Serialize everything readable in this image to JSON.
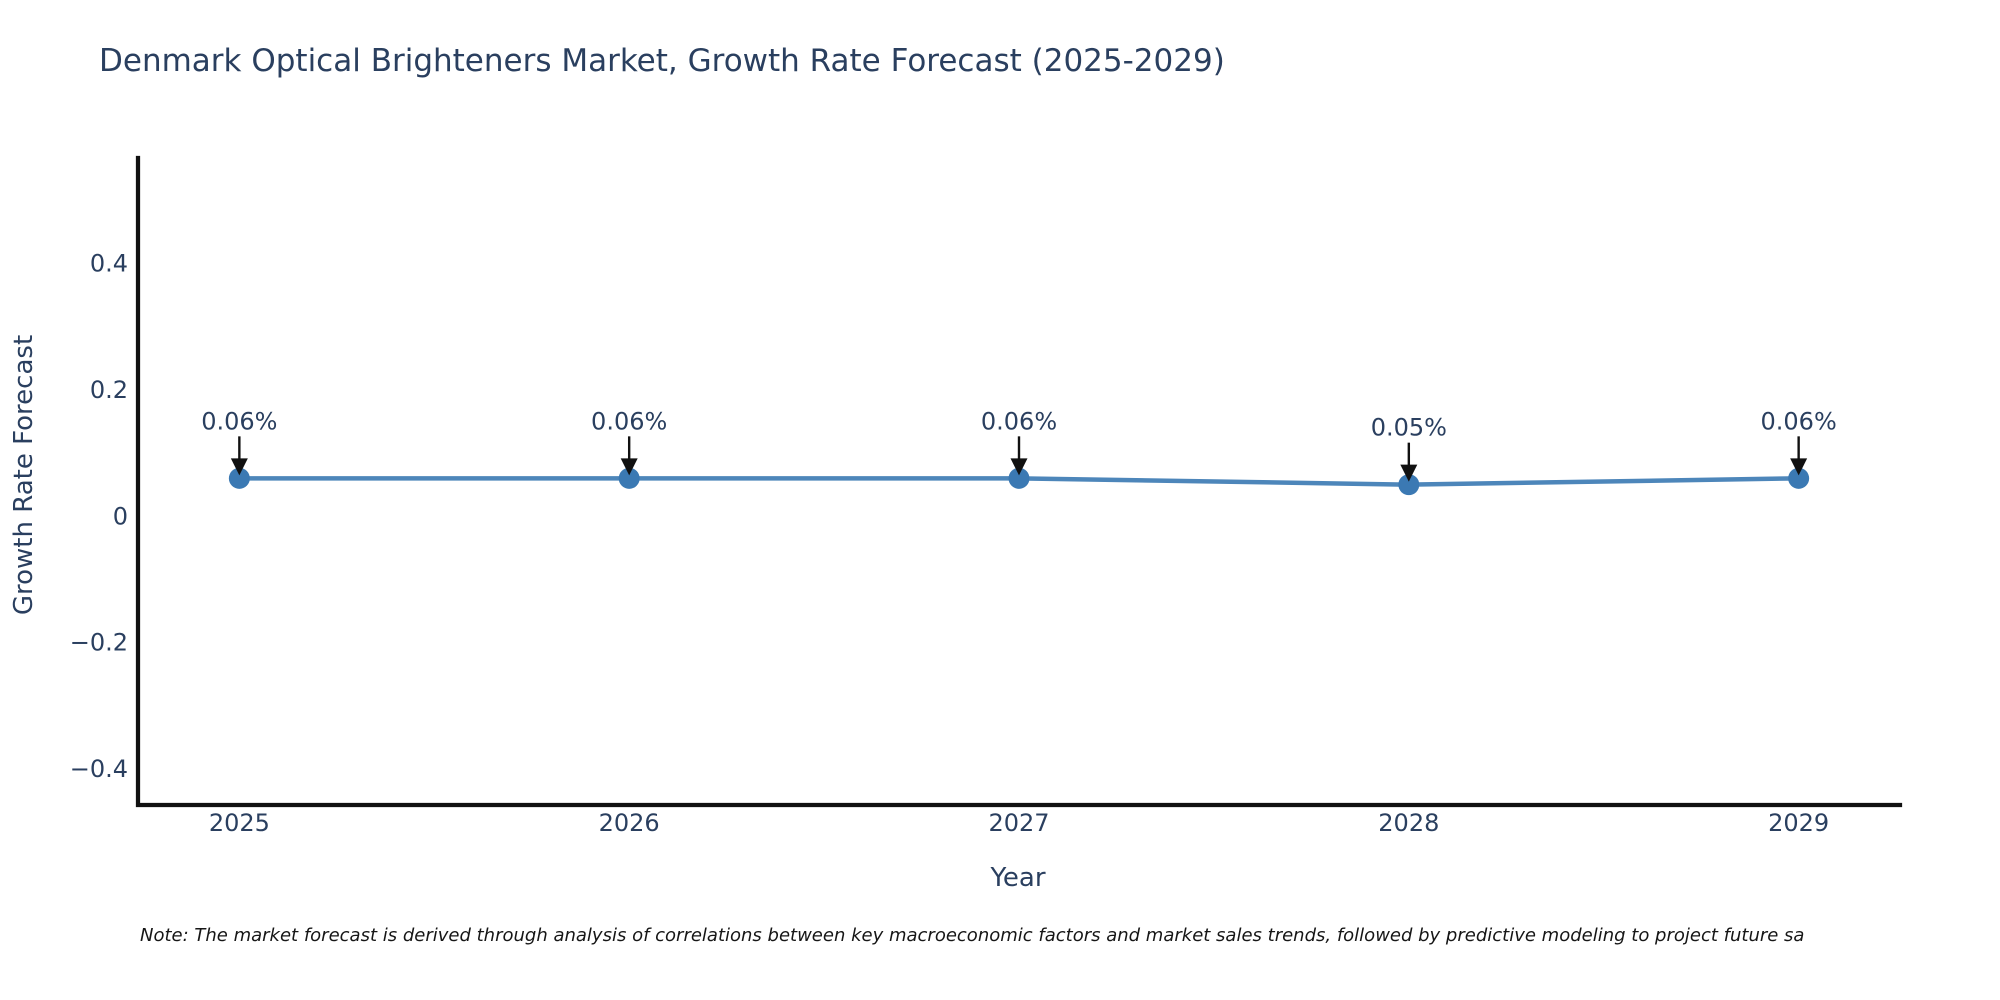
{
  "page": {
    "background": "#ffffff"
  },
  "note": "Note: The market forecast is derived through analysis of correlations between key macroeconomic factors and market sales trends, followed by predictive modeling to project future sa",
  "chart_data": {
    "type": "line",
    "title": "Denmark Optical Brighteners Market, Growth Rate Forecast (2025-2029)",
    "xlabel": "Year",
    "ylabel": "Growth Rate Forecast",
    "x": [
      2025,
      2026,
      2027,
      2028,
      2029
    ],
    "x_tick_labels": [
      "2025",
      "2026",
      "2027",
      "2028",
      "2029"
    ],
    "series": [
      {
        "name": "Growth Rate Forecast",
        "values": [
          0.06,
          0.06,
          0.06,
          0.05,
          0.06
        ]
      }
    ],
    "point_labels": [
      "0.06%",
      "0.06%",
      "0.06%",
      "0.05%",
      "0.06%"
    ],
    "yticks": [
      {
        "label": "0.4",
        "value": 0.4
      },
      {
        "label": "0.2",
        "value": 0.2
      },
      {
        "label": "0",
        "value": 0
      },
      {
        "label": "−0.2",
        "value": -0.2
      },
      {
        "label": "−0.4",
        "value": -0.4
      }
    ],
    "xlim": [
      2024.74,
      2029.26
    ],
    "ylim": [
      -0.457,
      0.567
    ],
    "grid": false,
    "legend": false,
    "annotation_style": "down-arrow-to-point",
    "colors": {
      "line": "#4d86ba",
      "marker": "#3b79b3",
      "text": "#2a3f5f",
      "axis": "#111111",
      "arrow": "#111111",
      "note_text": "#161616",
      "background": "#ffffff"
    }
  }
}
